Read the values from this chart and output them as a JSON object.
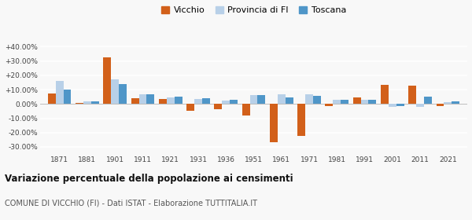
{
  "years": [
    1871,
    1881,
    1901,
    1911,
    1921,
    1931,
    1936,
    1951,
    1961,
    1971,
    1981,
    1991,
    2001,
    2011,
    2021
  ],
  "vicchio": [
    7.5,
    0.5,
    32.5,
    4.0,
    3.5,
    -5.0,
    -3.5,
    -8.0,
    -27.0,
    -22.5,
    -1.5,
    4.5,
    13.5,
    13.0,
    -1.5
  ],
  "provincia_fi": [
    16.0,
    2.0,
    17.0,
    6.5,
    4.5,
    3.5,
    2.5,
    6.0,
    7.0,
    7.0,
    3.0,
    3.0,
    -2.0,
    -2.0,
    1.5
  ],
  "toscana": [
    10.0,
    2.0,
    14.0,
    6.5,
    5.0,
    4.0,
    3.0,
    6.0,
    4.5,
    5.5,
    3.0,
    3.0,
    -1.5,
    5.0,
    2.0
  ],
  "color_vicchio": "#d2601a",
  "color_provincia": "#b8d0e8",
  "color_toscana": "#4f96c8",
  "ylim": [
    -35,
    45
  ],
  "yticks": [
    -30,
    -20,
    -10,
    0,
    10,
    20,
    30,
    40
  ],
  "ytick_labels": [
    "-30.00%",
    "-20.00%",
    "-10.00%",
    "0.00%",
    "+10.00%",
    "+20.00%",
    "+30.00%",
    "+40.00%"
  ],
  "title": "Variazione percentuale della popolazione ai censimenti",
  "subtitle": "COMUNE DI VICCHIO (FI) - Dati ISTAT - Elaborazione TUTTITALIA.IT",
  "legend_labels": [
    "Vicchio",
    "Provincia di FI",
    "Toscana"
  ],
  "bar_width": 0.28,
  "background_color": "#f8f8f8",
  "grid_color": "#ffffff"
}
